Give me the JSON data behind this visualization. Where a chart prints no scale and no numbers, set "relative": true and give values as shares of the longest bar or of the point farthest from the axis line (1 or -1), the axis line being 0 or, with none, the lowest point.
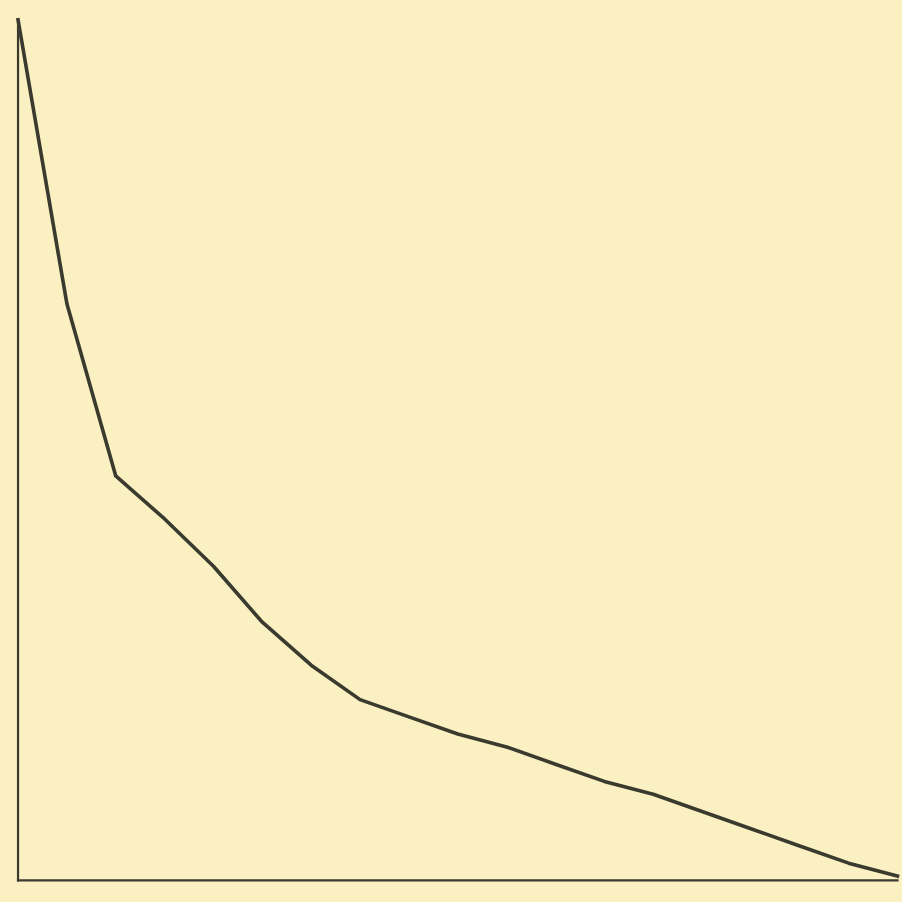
{
  "chart_data": {
    "type": "line",
    "relative": true,
    "categories": [
      null,
      null,
      null,
      null,
      null,
      null,
      null,
      null,
      null,
      null,
      null,
      null,
      null,
      null,
      null,
      null,
      null,
      null,
      null
    ],
    "series": [
      {
        "color": "#3a3a2e",
        "values": [
          1.0,
          0.67,
          0.47,
          0.42,
          0.365,
          0.3,
          0.25,
          0.21,
          0.19,
          0.17,
          0.155,
          0.135,
          0.115,
          0.1,
          0.08,
          0.06,
          0.04,
          0.02,
          0.005
        ]
      }
    ],
    "grid": false,
    "legend": false,
    "marker": "none",
    "line_style": "solid"
  }
}
